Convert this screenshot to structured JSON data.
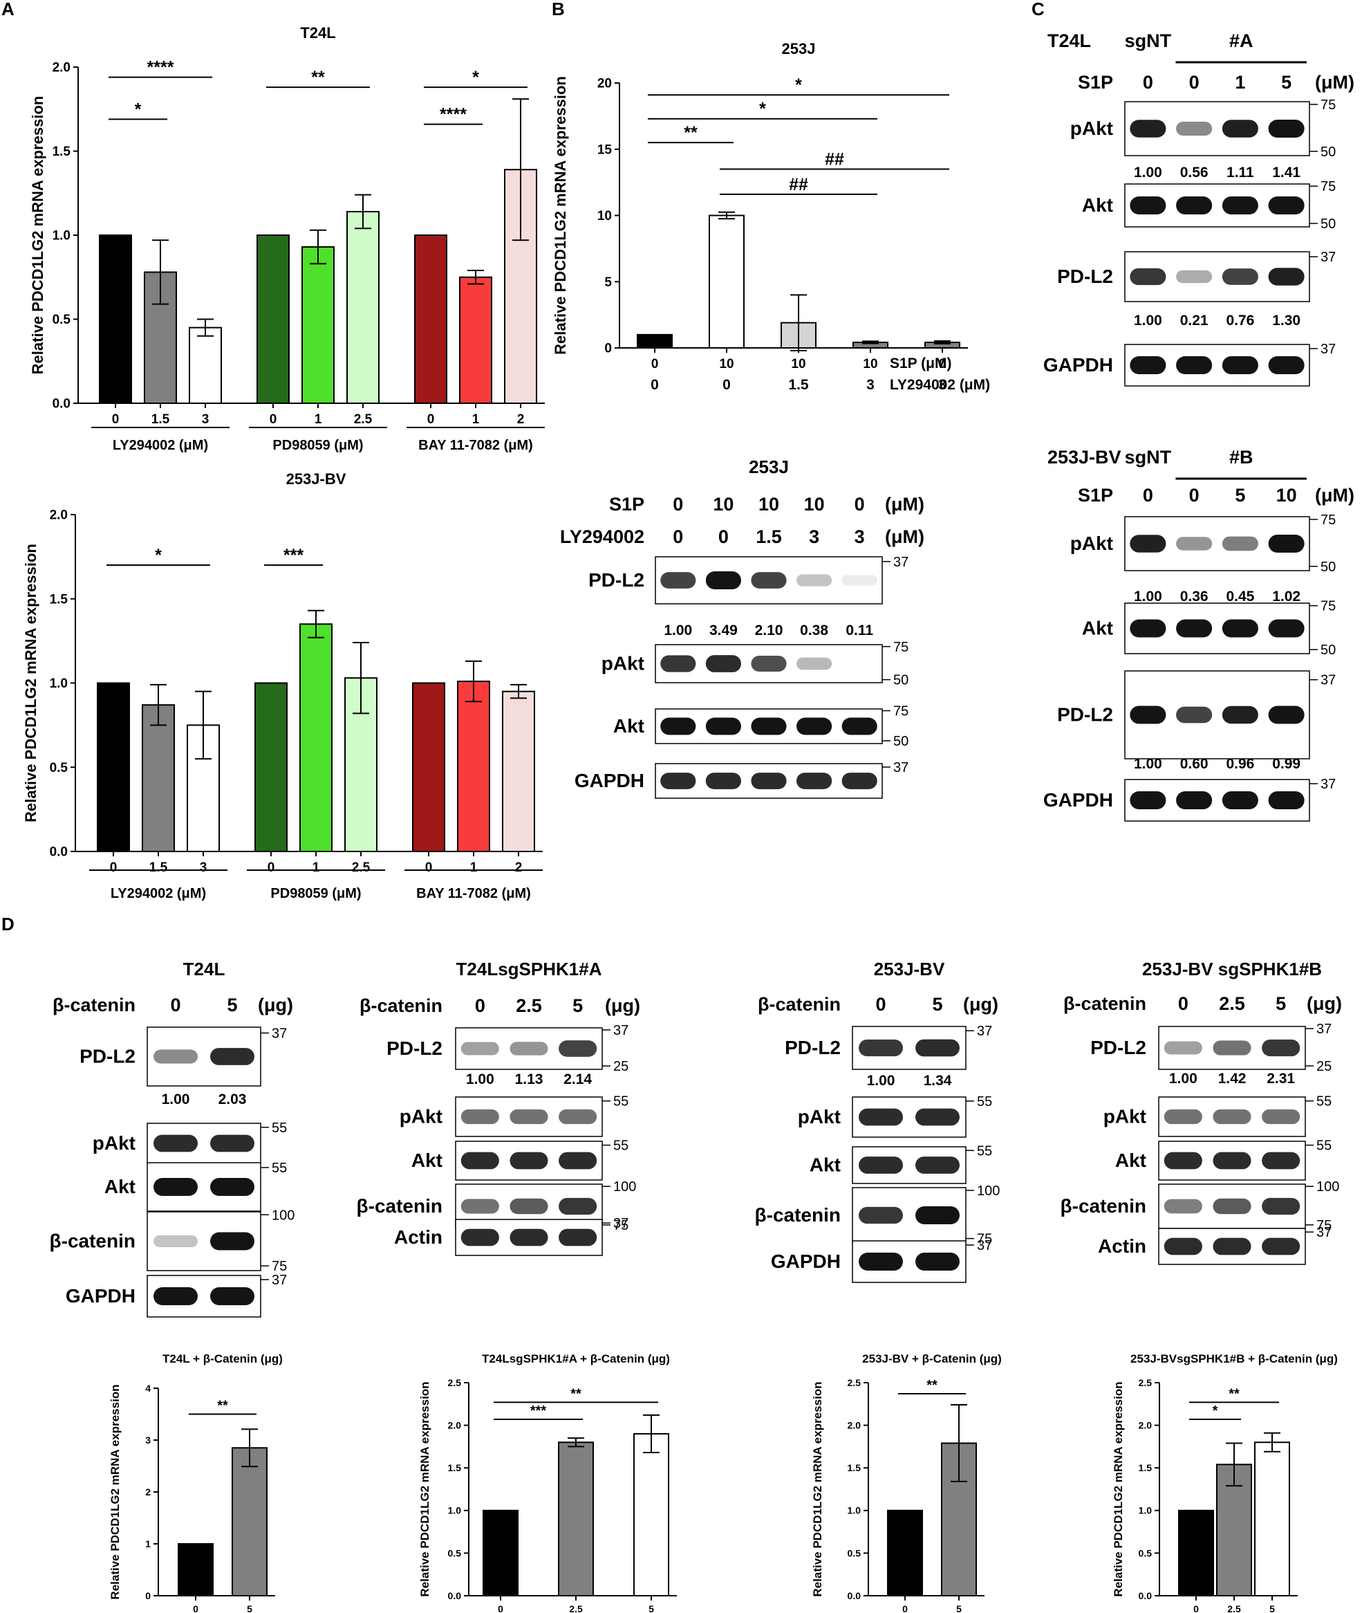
{
  "panels": {
    "A": "A",
    "B": "B",
    "C": "C",
    "D": "D"
  },
  "colors": {
    "black": "#000000",
    "grey": "#808080",
    "white": "#ffffff",
    "dkgreen": "#256b1a",
    "green": "#4ee02a",
    "ltgreen": "#cffcc8",
    "dkred": "#a01818",
    "red": "#f83c3c",
    "pink": "#f6dddd",
    "ltgrey": "#d4d4d4"
  },
  "chart_data": [
    {
      "id": "A1",
      "type": "bar",
      "title": "T24L",
      "ylabel": "Relative PDCD1LG2 mRNA expression",
      "ylim": [
        0,
        2.0
      ],
      "yticks": [
        "0.0",
        "0.5",
        "1.0",
        "1.5",
        "2.0"
      ],
      "categories": [
        "0",
        "1.5",
        "3",
        "0",
        "1",
        "2.5",
        "0",
        "1",
        "2"
      ],
      "values": [
        1.0,
        0.78,
        0.45,
        1.0,
        0.93,
        1.14,
        1.0,
        0.75,
        1.39
      ],
      "errors": [
        0,
        0.19,
        0.05,
        0,
        0.1,
        0.1,
        0,
        0.04,
        0.42
      ],
      "fills": [
        "black",
        "grey",
        "white",
        "dkgreen",
        "green",
        "ltgreen",
        "dkred",
        "red",
        "pink"
      ],
      "groups": [
        {
          "label": "LY294002 (μM)",
          "from": 0,
          "to": 2
        },
        {
          "label": "PD98059 (μM)",
          "from": 3,
          "to": 5
        },
        {
          "label": "BAY 11-7082 (μM)",
          "from": 6,
          "to": 8
        }
      ],
      "sig": [
        {
          "label": "****",
          "from": 0,
          "to": 2,
          "y": 1.94
        },
        {
          "label": "*",
          "from": 0,
          "to": 1,
          "y": 1.69
        },
        {
          "label": "**",
          "from": 3,
          "to": 5,
          "y": 1.88
        },
        {
          "label": "*",
          "from": 6,
          "to": 8,
          "y": 1.88
        },
        {
          "label": "****",
          "from": 6,
          "to": 7,
          "y": 1.66
        }
      ]
    },
    {
      "id": "A2",
      "type": "bar",
      "title": "253J-BV",
      "ylabel": "Relative PDCD1LG2 mRNA expression",
      "ylim": [
        0,
        2.0
      ],
      "yticks": [
        "0.0",
        "0.5",
        "1.0",
        "1.5",
        "2.0"
      ],
      "categories": [
        "0",
        "1.5",
        "3",
        "0",
        "1",
        "2.5",
        "0",
        "1",
        "2"
      ],
      "values": [
        1.0,
        0.87,
        0.75,
        1.0,
        1.35,
        1.03,
        1.0,
        1.01,
        0.95
      ],
      "errors": [
        0,
        0.12,
        0.2,
        0,
        0.08,
        0.21,
        0,
        0.12,
        0.04
      ],
      "fills": [
        "black",
        "grey",
        "white",
        "dkgreen",
        "green",
        "ltgreen",
        "dkred",
        "red",
        "pink"
      ],
      "groups": [
        {
          "label": "LY294002 (μM)",
          "from": 0,
          "to": 2
        },
        {
          "label": "PD98059 (μM)",
          "from": 3,
          "to": 5
        },
        {
          "label": "BAY 11-7082 (μM)",
          "from": 6,
          "to": 8
        }
      ],
      "sig": [
        {
          "label": "*",
          "from": 0,
          "to": 2,
          "y": 1.7
        },
        {
          "label": "***",
          "from": 3,
          "to": 4,
          "y": 1.7
        }
      ]
    },
    {
      "id": "B",
      "type": "bar",
      "title": "253J",
      "ylabel": "Relative PDCD1LG2 mRNA expression",
      "ylim": [
        0,
        20
      ],
      "yticks": [
        "0",
        "5",
        "10",
        "15",
        "20"
      ],
      "categories": [
        "0",
        "10",
        "10",
        "10",
        "0"
      ],
      "categories2": [
        "0",
        "0",
        "1.5",
        "3",
        "3"
      ],
      "row_labels": [
        "S1P (μM)",
        "LY294002 (μM)"
      ],
      "values": [
        1.0,
        10.0,
        1.9,
        0.42,
        0.42
      ],
      "errors": [
        0,
        0.25,
        2.1,
        0.08,
        0.1
      ],
      "fills": [
        "black",
        "white",
        "ltgrey",
        "grey",
        "grey"
      ],
      "sig": [
        {
          "label": "*",
          "from": 0,
          "to": 4,
          "y": 19.1
        },
        {
          "label": "*",
          "from": 0,
          "to": 3,
          "y": 17.3
        },
        {
          "label": "**",
          "from": 0,
          "to": 1,
          "y": 15.5
        },
        {
          "label": "##",
          "from": 1,
          "to": 4,
          "y": 13.5
        },
        {
          "label": "##",
          "from": 1,
          "to": 3,
          "y": 11.6
        }
      ]
    },
    {
      "id": "D1",
      "type": "bar",
      "title": "T24L + β-Catenin (μg)",
      "ylabel": "Relative PDCD1LG2 mRNA expression",
      "ylim": [
        0,
        4
      ],
      "yticks": [
        "0",
        "1",
        "2",
        "3",
        "4"
      ],
      "categories": [
        "0",
        "5"
      ],
      "values": [
        1.0,
        2.85
      ],
      "errors": [
        0,
        0.36
      ],
      "fills": [
        "black",
        "grey"
      ],
      "sig": [
        {
          "label": "**",
          "from": 0,
          "to": 1,
          "y": 3.5
        }
      ]
    },
    {
      "id": "D2",
      "type": "bar",
      "title": "T24LsgSPHK1#A + β-Catenin (μg)",
      "ylabel": "Relative PDCD1LG2 mRNA expression",
      "ylim": [
        0,
        2.5
      ],
      "yticks": [
        "0.0",
        "0.5",
        "1.0",
        "1.5",
        "2.0",
        "2.5"
      ],
      "categories": [
        "0",
        "2.5",
        "5"
      ],
      "values": [
        1.0,
        1.8,
        1.9
      ],
      "errors": [
        0,
        0.05,
        0.22
      ],
      "fills": [
        "black",
        "grey",
        "white"
      ],
      "sig": [
        {
          "label": "**",
          "from": 0,
          "to": 2,
          "y": 2.27
        },
        {
          "label": "***",
          "from": 0,
          "to": 1,
          "y": 2.07
        }
      ]
    },
    {
      "id": "D3",
      "type": "bar",
      "title": "253J-BV + β-Catenin (μg)",
      "ylabel": "Relative PDCD1LG2 mRNA expression",
      "ylim": [
        0,
        2.5
      ],
      "yticks": [
        "0.0",
        "0.5",
        "1.0",
        "1.5",
        "2.0",
        "2.5"
      ],
      "categories": [
        "0",
        "5"
      ],
      "values": [
        1.0,
        1.79
      ],
      "errors": [
        0,
        0.45
      ],
      "fills": [
        "black",
        "grey"
      ],
      "sig": [
        {
          "label": "**",
          "from": 0,
          "to": 1,
          "y": 2.37
        }
      ]
    },
    {
      "id": "D4",
      "type": "bar",
      "title": "253J-BVsgSPHK1#B + β-Catenin (μg)",
      "ylabel": "Relative PDCD1LG2 mRNA expression",
      "ylim": [
        0,
        2.5
      ],
      "yticks": [
        "0.0",
        "0.5",
        "1.0",
        "1.5",
        "2.0",
        "2.5"
      ],
      "categories": [
        "0",
        "2.5",
        "5"
      ],
      "values": [
        1.0,
        1.54,
        1.8
      ],
      "errors": [
        0,
        0.25,
        0.11
      ],
      "fills": [
        "black",
        "grey",
        "white"
      ],
      "sig": [
        {
          "label": "**",
          "from": 0,
          "to": 2,
          "y": 2.27
        },
        {
          "label": "*",
          "from": 0,
          "to": 1,
          "y": 2.07
        }
      ]
    }
  ],
  "blots": [
    {
      "id": "B-blot",
      "title": "253J",
      "header_rows": [
        {
          "label": "S1P",
          "values": [
            "0",
            "10",
            "10",
            "10",
            "0"
          ],
          "unit": "(μM)"
        },
        {
          "label": "LY294002",
          "values": [
            "0",
            "0",
            "1.5",
            "3",
            "3"
          ],
          "unit": "(μM)"
        }
      ],
      "lanes": 5,
      "rows": [
        {
          "label": "PD-L2",
          "intensity": [
            0.8,
            1.0,
            0.8,
            0.25,
            0.08
          ],
          "quant": [
            "1.00",
            "3.49",
            "2.10",
            "0.38",
            "0.11"
          ],
          "markers": [
            "37"
          ]
        },
        {
          "label": "pAkt",
          "intensity": [
            0.85,
            0.9,
            0.75,
            0.3,
            0
          ],
          "markers": [
            "75",
            "50"
          ]
        },
        {
          "label": "Akt",
          "intensity": [
            1,
            1,
            1,
            1,
            1
          ],
          "markers": [
            "75",
            "50"
          ]
        },
        {
          "label": "GAPDH",
          "intensity": [
            0.9,
            0.9,
            0.9,
            0.9,
            0.9
          ],
          "markers": [
            "37"
          ]
        }
      ]
    },
    {
      "id": "C1",
      "cell": "T24L",
      "group_ctrl": "sgNT",
      "group_exp": "#A",
      "header_rows": [
        {
          "label": "S1P",
          "values": [
            "0",
            "0",
            "1",
            "5"
          ],
          "unit": "(μM)"
        }
      ],
      "lanes": 4,
      "rows": [
        {
          "label": "pAkt",
          "intensity": [
            0.95,
            0.5,
            0.95,
            1
          ],
          "quant": [
            "1.00",
            "0.56",
            "1.11",
            "1.41"
          ],
          "markers": [
            "75",
            "50"
          ]
        },
        {
          "label": "Akt",
          "intensity": [
            1,
            1,
            1,
            1
          ],
          "markers": [
            "75",
            "50"
          ]
        },
        {
          "label": "PD-L2",
          "intensity": [
            0.85,
            0.35,
            0.8,
            0.95
          ],
          "quant": [
            "1.00",
            "0.21",
            "0.76",
            "1.30"
          ],
          "markers": [
            "37"
          ]
        },
        {
          "label": "GAPDH",
          "intensity": [
            1,
            1,
            1,
            1
          ],
          "markers": [
            "37"
          ]
        }
      ]
    },
    {
      "id": "C2",
      "cell": "253J-BV",
      "group_ctrl": "sgNT",
      "group_exp": "#B",
      "header_rows": [
        {
          "label": "S1P",
          "values": [
            "0",
            "0",
            "5",
            "10"
          ],
          "unit": "(μM)"
        }
      ],
      "lanes": 4,
      "rows": [
        {
          "label": "pAkt",
          "intensity": [
            0.95,
            0.45,
            0.55,
            1
          ],
          "quant": [
            "1.00",
            "0.36",
            "0.45",
            "1.02"
          ],
          "markers": [
            "75",
            "50"
          ]
        },
        {
          "label": "Akt",
          "intensity": [
            1,
            1,
            1,
            1
          ],
          "markers": [
            "75",
            "50"
          ]
        },
        {
          "label": "PD-L2",
          "intensity": [
            1,
            0.8,
            0.95,
            1
          ],
          "quant": [
            "1.00",
            "0.60",
            "0.96",
            "0.99"
          ],
          "markers": [
            "37"
          ]
        },
        {
          "label": "GAPDH",
          "intensity": [
            1,
            1,
            1,
            1
          ],
          "markers": [
            "37"
          ]
        }
      ]
    },
    {
      "id": "D1-blot",
      "title": "T24L",
      "header_rows": [
        {
          "label": "β-catenin",
          "values": [
            "0",
            "5"
          ],
          "unit": "(μg)"
        }
      ],
      "lanes": 2,
      "rows": [
        {
          "label": "PD-L2",
          "intensity": [
            0.5,
            0.9
          ],
          "quant": [
            "1.00",
            "2.03"
          ],
          "markers": [
            "37"
          ]
        },
        {
          "label": "pAkt",
          "intensity": [
            0.9,
            0.9
          ],
          "markers": [
            "55"
          ]
        },
        {
          "label": "Akt",
          "intensity": [
            1,
            1
          ],
          "markers": [
            "55"
          ]
        },
        {
          "label": "β-catenin",
          "intensity": [
            0.25,
            1
          ],
          "markers": [
            "100",
            "75"
          ]
        },
        {
          "label": "GAPDH",
          "intensity": [
            1,
            1
          ],
          "markers": [
            "37"
          ]
        }
      ]
    },
    {
      "id": "D2-blot",
      "title": "T24LsgSPHK1#A",
      "header_rows": [
        {
          "label": "β-catenin",
          "values": [
            "0",
            "2.5",
            "5"
          ],
          "unit": "(μg)"
        }
      ],
      "lanes": 3,
      "rows": [
        {
          "label": "PD-L2",
          "intensity": [
            0.4,
            0.45,
            0.8
          ],
          "quant": [
            "1.00",
            "1.13",
            "2.14"
          ],
          "markers": [
            "37",
            "25"
          ]
        },
        {
          "label": "pAkt",
          "intensity": [
            0.6,
            0.6,
            0.6
          ],
          "markers": [
            "55"
          ]
        },
        {
          "label": "Akt",
          "intensity": [
            0.9,
            0.9,
            0.9
          ],
          "markers": [
            "55"
          ]
        },
        {
          "label": "β-catenin",
          "intensity": [
            0.6,
            0.7,
            0.85
          ],
          "markers": [
            "100",
            "75"
          ]
        },
        {
          "label": "Actin",
          "intensity": [
            0.9,
            0.9,
            0.9
          ],
          "markers": [
            "37"
          ]
        }
      ]
    },
    {
      "id": "D3-blot",
      "title": "253J-BV",
      "header_rows": [
        {
          "label": "β-catenin",
          "values": [
            "0",
            "5"
          ],
          "unit": "(μg)"
        }
      ],
      "lanes": 2,
      "rows": [
        {
          "label": "PD-L2",
          "intensity": [
            0.85,
            0.9
          ],
          "quant": [
            "1.00",
            "1.34"
          ],
          "markers": [
            "37"
          ]
        },
        {
          "label": "pAkt",
          "intensity": [
            0.9,
            0.9
          ],
          "markers": [
            "55"
          ]
        },
        {
          "label": "Akt",
          "intensity": [
            0.9,
            0.9
          ],
          "markers": [
            "55"
          ]
        },
        {
          "label": "β-catenin",
          "intensity": [
            0.85,
            1
          ],
          "markers": [
            "100",
            "75"
          ]
        },
        {
          "label": "GAPDH",
          "intensity": [
            1,
            1
          ],
          "markers": [
            "37"
          ]
        }
      ]
    },
    {
      "id": "D4-blot",
      "title": "253J-BV sgSPHK1#B",
      "header_rows": [
        {
          "label": "β-catenin",
          "values": [
            "0",
            "2.5",
            "5"
          ],
          "unit": "(μg)"
        }
      ],
      "lanes": 3,
      "rows": [
        {
          "label": "PD-L2",
          "intensity": [
            0.4,
            0.6,
            0.85
          ],
          "quant": [
            "1.00",
            "1.42",
            "2.31"
          ],
          "markers": [
            "37",
            "25"
          ]
        },
        {
          "label": "pAkt",
          "intensity": [
            0.6,
            0.6,
            0.6
          ],
          "markers": [
            "55"
          ]
        },
        {
          "label": "Akt",
          "intensity": [
            0.9,
            0.9,
            0.9
          ],
          "markers": [
            "55"
          ]
        },
        {
          "label": "β-catenin",
          "intensity": [
            0.55,
            0.7,
            0.85
          ],
          "markers": [
            "100",
            "75"
          ]
        },
        {
          "label": "Actin",
          "intensity": [
            0.9,
            0.9,
            0.9
          ],
          "markers": [
            "37"
          ]
        }
      ]
    }
  ]
}
